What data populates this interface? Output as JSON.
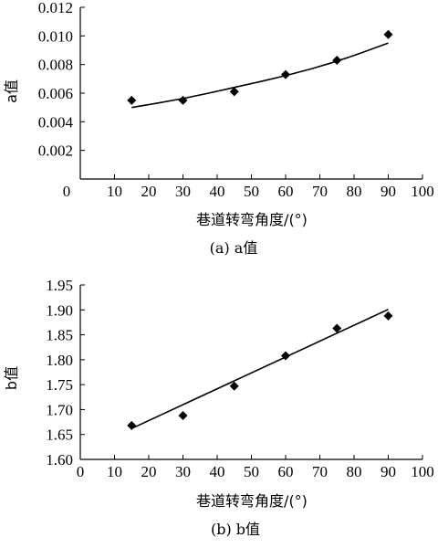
{
  "chart_data": [
    {
      "type": "scatter",
      "panel": "a",
      "caption": "(a) a值",
      "xlabel": "巷道转弯角度/(°)",
      "ylabel": "a值",
      "xlim": [
        0,
        100
      ],
      "ylim": [
        0,
        0.012
      ],
      "x_ticks": [
        "0",
        "10",
        "20",
        "30",
        "40",
        "50",
        "60",
        "70",
        "80",
        "90",
        "100"
      ],
      "y_ticks": [
        "0.002",
        "0.004",
        "0.006",
        "0.008",
        "0.010",
        "0.012"
      ],
      "points": [
        {
          "x": 15,
          "y": 0.0055
        },
        {
          "x": 30,
          "y": 0.0055
        },
        {
          "x": 45,
          "y": 0.0061
        },
        {
          "x": 60,
          "y": 0.0073
        },
        {
          "x": 75,
          "y": 0.0083
        },
        {
          "x": 90,
          "y": 0.0101
        }
      ],
      "fit": {
        "kind": "curve",
        "x": [
          15,
          30,
          45,
          60,
          75,
          90
        ],
        "y": [
          0.005,
          0.0056,
          0.0064,
          0.0072,
          0.0082,
          0.0095
        ]
      }
    },
    {
      "type": "scatter",
      "panel": "b",
      "caption": "(b) b值",
      "xlabel": "巷道转弯角度/(°)",
      "ylabel": "b值",
      "xlim": [
        0,
        100
      ],
      "ylim": [
        1.6,
        1.95
      ],
      "x_ticks": [
        "0",
        "10",
        "20",
        "30",
        "40",
        "50",
        "60",
        "70",
        "80",
        "90",
        "100"
      ],
      "y_ticks": [
        "1.60",
        "1.65",
        "1.70",
        "1.75",
        "1.80",
        "1.85",
        "1.90",
        "1.95"
      ],
      "points": [
        {
          "x": 15,
          "y": 1.668
        },
        {
          "x": 30,
          "y": 1.688
        },
        {
          "x": 45,
          "y": 1.747
        },
        {
          "x": 60,
          "y": 1.808
        },
        {
          "x": 75,
          "y": 1.863
        },
        {
          "x": 90,
          "y": 1.888
        }
      ],
      "fit": {
        "kind": "line",
        "x": [
          15,
          90
        ],
        "y": [
          1.662,
          1.901
        ]
      }
    }
  ]
}
